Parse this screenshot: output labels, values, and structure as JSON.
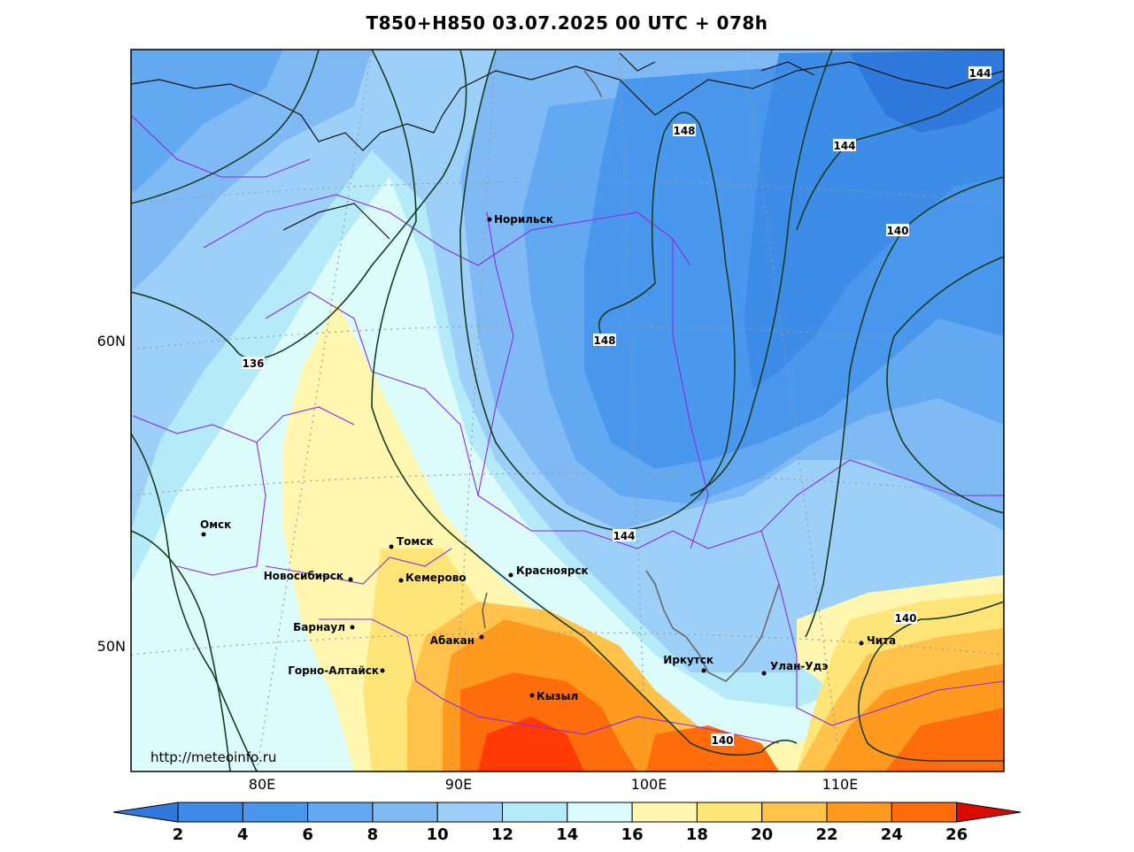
{
  "title": "T850+H850 03.07.2025 00 UTC + 078h",
  "source_url": "http://meteoinfo.ru",
  "lat_labels": [
    "60N",
    "50N"
  ],
  "lon_labels": [
    "80E",
    "90E",
    "100E",
    "110E"
  ],
  "colorbar": {
    "ticks": [
      "2",
      "4",
      "6",
      "8",
      "10",
      "12",
      "14",
      "16",
      "18",
      "20",
      "22",
      "24",
      "26"
    ],
    "colors": [
      "#3d8de8",
      "#4a98ee",
      "#63a9f2",
      "#7fbaf5",
      "#9dd0f8",
      "#b5ebf8",
      "#dcfbfb",
      "#fff6b0",
      "#ffe478",
      "#ffc24a",
      "#ff9a1e",
      "#ff6c0c",
      "#ff3a06"
    ],
    "low_color": "#2f79dd",
    "high_color": "#d90a00"
  },
  "cities": [
    {
      "name": "Норильск"
    },
    {
      "name": "Омск"
    },
    {
      "name": "Томск"
    },
    {
      "name": "Новосибирск"
    },
    {
      "name": "Кемерово"
    },
    {
      "name": "Красноярск"
    },
    {
      "name": "Барнаул"
    },
    {
      "name": "Абакан"
    },
    {
      "name": "Горно-Алтайск"
    },
    {
      "name": "Кызыл"
    },
    {
      "name": "Иркутск"
    },
    {
      "name": "Улан-Удэ"
    },
    {
      "name": "Чита"
    }
  ],
  "contour_labels": [
    "136",
    "148",
    "148",
    "144",
    "144",
    "144",
    "140",
    "140",
    "140"
  ]
}
